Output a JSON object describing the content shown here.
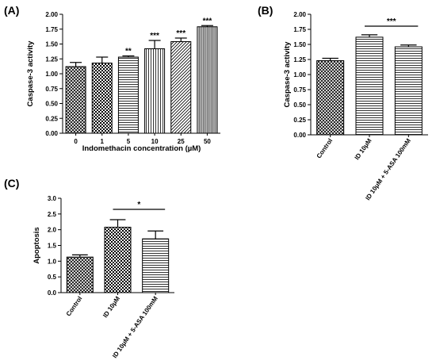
{
  "panels": [
    {
      "panel_label": "(A)",
      "chart_data": {
        "type": "bar",
        "categories": [
          "0",
          "1",
          "5",
          "10",
          "25",
          "50"
        ],
        "values": [
          1.12,
          1.18,
          1.28,
          1.42,
          1.54,
          1.79
        ],
        "errors": [
          0.07,
          0.1,
          0.02,
          0.14,
          0.06,
          0.02
        ],
        "significance": [
          "",
          "",
          "**",
          "***",
          "***",
          "***"
        ],
        "patterns": [
          "crosshatch",
          "checker",
          "hlines",
          "vlines",
          "diag",
          "dvlines"
        ],
        "xlabel": "Indomethacin concentration (µM)",
        "ylabel": "Caspase-3 activity",
        "ylim": [
          0,
          2.0
        ],
        "yticks": [
          "0.00",
          "0.25",
          "0.50",
          "0.75",
          "1.00",
          "1.25",
          "1.50",
          "1.75",
          "2.00"
        ],
        "bracket": null
      }
    },
    {
      "panel_label": "(B)",
      "chart_data": {
        "type": "bar",
        "categories": [
          "Control",
          "ID 10μM",
          "ID 10μM + 5-ASA 100mM"
        ],
        "values": [
          1.23,
          1.62,
          1.46
        ],
        "errors": [
          0.04,
          0.04,
          0.03
        ],
        "significance": [
          "",
          "",
          ""
        ],
        "patterns": [
          "crosshatch",
          "hlines",
          "hlines"
        ],
        "xlabel": "",
        "ylabel": "Caspase-3 activity",
        "ylim": [
          0,
          2.0
        ],
        "yticks": [
          "0.00",
          "0.25",
          "0.50",
          "0.75",
          "1.00",
          "1.25",
          "1.50",
          "1.75",
          "2.00"
        ],
        "bracket": {
          "from": 1,
          "to": 2,
          "label": "***"
        }
      }
    },
    {
      "panel_label": "(C)",
      "chart_data": {
        "type": "bar",
        "categories": [
          "Control",
          "ID 10μM",
          "ID 10μM + 5-ASA 100mM"
        ],
        "values": [
          1.13,
          2.08,
          1.71
        ],
        "errors": [
          0.07,
          0.24,
          0.25
        ],
        "significance": [
          "",
          "",
          ""
        ],
        "patterns": [
          "crosshatch",
          "checker",
          "hlines"
        ],
        "xlabel": "",
        "ylabel": "Apoptosis",
        "ylim": [
          0,
          3.0
        ],
        "yticks": [
          "0.0",
          "0.5",
          "1.0",
          "1.5",
          "2.0",
          "2.5",
          "3.0"
        ],
        "bracket": {
          "from": 1,
          "to": 2,
          "label": "*"
        }
      }
    }
  ]
}
